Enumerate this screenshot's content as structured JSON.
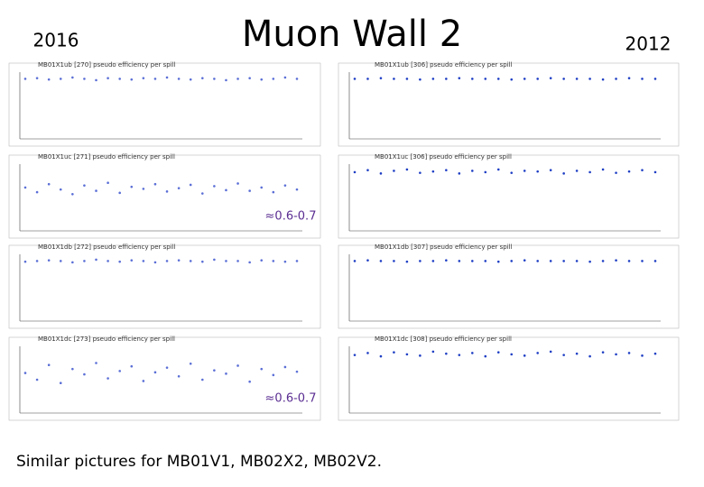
{
  "title": "Muon Wall 2",
  "left_label": "2016",
  "right_label": "2012",
  "ylim": [
    0,
    1
  ],
  "panels": [
    {
      "title": "MB01X1ub [270] pseudo efficiency per spill",
      "color": "#5b6fd6",
      "values": [
        0.9,
        0.91,
        0.89,
        0.9,
        0.92,
        0.9,
        0.88,
        0.91,
        0.9,
        0.89,
        0.91,
        0.9,
        0.92,
        0.9,
        0.89,
        0.91,
        0.9,
        0.88,
        0.9,
        0.91,
        0.89,
        0.9,
        0.92,
        0.9
      ]
    },
    {
      "title": "MB01X1ub [306] pseudo efficiency per spill",
      "color": "#1f3fc4",
      "values": [
        0.9,
        0.9,
        0.91,
        0.9,
        0.9,
        0.89,
        0.9,
        0.9,
        0.91,
        0.9,
        0.9,
        0.9,
        0.89,
        0.9,
        0.9,
        0.91,
        0.9,
        0.9,
        0.9,
        0.89,
        0.9,
        0.91,
        0.9,
        0.9
      ]
    },
    {
      "title": "MB01X1uc [271] pseudo efficiency per spill",
      "color": "#5b6fd6",
      "values": [
        0.65,
        0.58,
        0.7,
        0.62,
        0.55,
        0.68,
        0.6,
        0.72,
        0.57,
        0.66,
        0.63,
        0.7,
        0.59,
        0.64,
        0.69,
        0.56,
        0.67,
        0.61,
        0.71,
        0.6,
        0.65,
        0.58,
        0.68,
        0.62
      ]
    },
    {
      "title": "MB01X1uc [306] pseudo efficiency per spill",
      "color": "#1f3fc4",
      "values": [
        0.88,
        0.91,
        0.86,
        0.9,
        0.92,
        0.87,
        0.89,
        0.91,
        0.86,
        0.9,
        0.88,
        0.92,
        0.87,
        0.9,
        0.89,
        0.91,
        0.86,
        0.9,
        0.88,
        0.92,
        0.87,
        0.89,
        0.91,
        0.88
      ]
    },
    {
      "title": "MB01X1db [272] pseudo efficiency per spill",
      "color": "#5b6fd6",
      "values": [
        0.89,
        0.9,
        0.91,
        0.9,
        0.88,
        0.9,
        0.92,
        0.9,
        0.89,
        0.91,
        0.9,
        0.88,
        0.9,
        0.91,
        0.9,
        0.89,
        0.92,
        0.9,
        0.9,
        0.88,
        0.91,
        0.9,
        0.89,
        0.9
      ]
    },
    {
      "title": "MB01X1db [307] pseudo efficiency per spill",
      "color": "#1f3fc4",
      "values": [
        0.9,
        0.91,
        0.9,
        0.9,
        0.89,
        0.9,
        0.9,
        0.91,
        0.9,
        0.9,
        0.9,
        0.89,
        0.9,
        0.91,
        0.9,
        0.9,
        0.9,
        0.9,
        0.89,
        0.9,
        0.91,
        0.9,
        0.9,
        0.9
      ]
    },
    {
      "title": "MB01X1dc [273] pseudo efficiency per spill",
      "color": "#5b6fd6",
      "values": [
        0.6,
        0.5,
        0.72,
        0.45,
        0.66,
        0.58,
        0.75,
        0.52,
        0.63,
        0.7,
        0.48,
        0.61,
        0.68,
        0.55,
        0.74,
        0.5,
        0.64,
        0.59,
        0.71,
        0.47,
        0.66,
        0.57,
        0.69,
        0.62
      ]
    },
    {
      "title": "MB01X1dc [308] pseudo efficiency per spill",
      "color": "#1f3fc4",
      "values": [
        0.87,
        0.9,
        0.85,
        0.91,
        0.88,
        0.86,
        0.92,
        0.89,
        0.87,
        0.9,
        0.85,
        0.91,
        0.88,
        0.86,
        0.9,
        0.92,
        0.87,
        0.89,
        0.85,
        0.91,
        0.88,
        0.9,
        0.86,
        0.89
      ]
    }
  ],
  "annotations": [
    {
      "text": "≈0.6-0.7",
      "panel": 2
    },
    {
      "text": "≈0.6-0.7",
      "panel": 6
    }
  ],
  "footer": "Similar pictures for MB01V1, MB02X2, MB02V2."
}
